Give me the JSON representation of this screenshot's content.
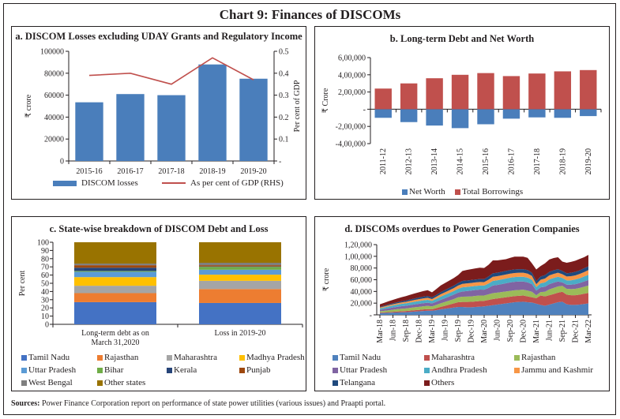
{
  "title": "Chart 9: Finances of DISCOMs",
  "sources": {
    "label": "Sources:",
    "text": "Power Finance Corporation report on performance of state power utilities (various issues) and Praapti portal."
  },
  "chart_data": [
    {
      "id": "a",
      "type": "bar",
      "title": "a. DISCOM Losses excluding UDAY Grants and Regulatory Income",
      "categories": [
        "2015-16",
        "2016-17",
        "2017-18",
        "2018-19",
        "2019-20"
      ],
      "series": [
        {
          "name": "DISCOM losses",
          "type": "bar",
          "axis": "left",
          "color": "#4a7ebb",
          "values": [
            53500,
            61000,
            60000,
            88000,
            75000
          ]
        },
        {
          "name": "As per cent of GDP (RHS)",
          "type": "line",
          "axis": "right",
          "color": "#c0504d",
          "values": [
            0.39,
            0.4,
            0.35,
            0.47,
            0.37
          ]
        }
      ],
      "ylabel": "₹ crore",
      "ylabel_right": "Per cent of GDP",
      "ylim": [
        0,
        100000
      ],
      "yticks": [
        "0",
        "20000",
        "40000",
        "60000",
        "80000",
        "100000"
      ],
      "ylim_right": [
        0,
        0.5
      ],
      "yticks_right": [
        "-",
        "0.1",
        "0.2",
        "0.3",
        "0.4",
        "0.5"
      ],
      "grid": false,
      "legend": "bottom"
    },
    {
      "id": "b",
      "type": "bar",
      "title": "b. Long-term Debt and Net Worth",
      "categories": [
        "2011-12",
        "2012-13",
        "2013-14",
        "2014-15",
        "2015-16",
        "2016-17",
        "2017-18",
        "2018-19",
        "2019-20"
      ],
      "series": [
        {
          "name": "Net Worth",
          "color": "#4a7ebb",
          "values": [
            -100000,
            -150000,
            -190000,
            -220000,
            -175000,
            -110000,
            -95000,
            -100000,
            -80000
          ]
        },
        {
          "name": "Total Borrowings",
          "color": "#c0504d",
          "values": [
            240000,
            300000,
            360000,
            400000,
            420000,
            385000,
            415000,
            440000,
            455000
          ]
        }
      ],
      "ylabel": "₹ Crore",
      "ylim": [
        -400000,
        600000
      ],
      "yticks": [
        "-4,00,000",
        "-2,00,000",
        "-",
        "2,00,000",
        "4,00,000",
        "6,00,000"
      ],
      "grid": false,
      "legend": "bottom"
    },
    {
      "id": "c",
      "type": "bar",
      "stacked": true,
      "title": "c. State-wise breakdown of DISCOM Debt and Loss",
      "categories": [
        "Long-term debt as on March 31,2020",
        "Loss in 2019-20"
      ],
      "series": [
        {
          "name": "Tamil Nadu",
          "color": "#4472c4",
          "values": [
            27,
            26
          ]
        },
        {
          "name": "Rajasthan",
          "color": "#ed7d31",
          "values": [
            11,
            17
          ]
        },
        {
          "name": "Maharashtra",
          "color": "#a5a5a5",
          "values": [
            9,
            10
          ]
        },
        {
          "name": "Madhya Pradesh",
          "color": "#ffc000",
          "values": [
            10.5,
            7.5
          ]
        },
        {
          "name": "Uttar Pradesh",
          "color": "#5b9bd5",
          "values": [
            6.5,
            6
          ]
        },
        {
          "name": "Bihar",
          "color": "#70ad47",
          "values": [
            1,
            3.5
          ]
        },
        {
          "name": "Kerala",
          "color": "#264478",
          "values": [
            4,
            0.5
          ]
        },
        {
          "name": "Punjab",
          "color": "#9e480e",
          "values": [
            3,
            1.5
          ]
        },
        {
          "name": "West Bengal",
          "color": "#7f7f7f",
          "values": [
            2,
            3
          ]
        },
        {
          "name": "Other states",
          "color": "#997300",
          "values": [
            26,
            25
          ]
        }
      ],
      "ylabel": "Per cent",
      "ylim": [
        0,
        100
      ],
      "yticks": [
        "0",
        "10",
        "20",
        "30",
        "40",
        "50",
        "60",
        "70",
        "80",
        "90",
        "100"
      ],
      "grid": false,
      "legend": "bottom"
    },
    {
      "id": "d",
      "type": "area",
      "stacked": true,
      "title": "d. DISCOMs overdues to Power Generation Companies",
      "x": [
        "Mar-18",
        "Apr-18",
        "May-18",
        "Jun-18",
        "Jul-18",
        "Aug-18",
        "Sep-18",
        "Oct-18",
        "Nov-18",
        "Dec-18",
        "Jan-19",
        "Feb-19",
        "Mar-19",
        "Apr-19",
        "May-19",
        "Jun-19",
        "Jul-19",
        "Aug-19",
        "Sep-19",
        "Oct-19",
        "Nov-19",
        "Dec-19",
        "Jan-20",
        "Feb-20",
        "Mar-20",
        "Apr-20",
        "May-20",
        "Jun-20",
        "Jul-20",
        "Aug-20",
        "Sep-20",
        "Oct-20",
        "Nov-20",
        "Dec-20",
        "Jan-21",
        "Feb-21",
        "Mar-21",
        "Apr-21",
        "May-21",
        "Jun-21",
        "Jul-21",
        "Aug-21",
        "Sep-21",
        "Oct-21",
        "Nov-21",
        "Dec-21",
        "Jan-22",
        "Feb-22",
        "Mar-22"
      ],
      "xticks": [
        "Mar-18",
        "Jun-18",
        "Sep-18",
        "Dec-18",
        "Mar-19",
        "Jun-19",
        "Sep-19",
        "Dec-19",
        "Mar-20",
        "Jun-20",
        "Sep-20",
        "Dec-20",
        "Mar-21",
        "Jun-21",
        "Sep-21",
        "Dec-21",
        "Mar-22"
      ],
      "series": [
        {
          "name": "Tamil Nadu",
          "color": "#4f81bd",
          "values": [
            3000,
            3200,
            3500,
            3800,
            4000,
            4300,
            4500,
            5000,
            5500,
            6000,
            6500,
            7000,
            7000,
            8000,
            9500,
            10500,
            11500,
            12500,
            13500,
            13500,
            13000,
            13000,
            13500,
            14000,
            14500,
            15500,
            16500,
            17500,
            18500,
            19500,
            20500,
            21500,
            22000,
            22500,
            21500,
            21000,
            19000,
            17000,
            15500,
            17500,
            19500,
            21500,
            22500,
            18000,
            17000,
            17000,
            17500,
            18500,
            19500
          ]
        },
        {
          "name": "Maharashtra",
          "color": "#c0504d",
          "values": [
            1000,
            1200,
            1300,
            1500,
            1700,
            1900,
            2000,
            2200,
            2400,
            2500,
            2700,
            2800,
            2500,
            3500,
            4200,
            5000,
            6000,
            7000,
            8000,
            8500,
            9000,
            9200,
            9500,
            9600,
            9500,
            10000,
            10500,
            10500,
            10500,
            10500,
            10500,
            10500,
            10500,
            10500,
            10000,
            9000,
            9500,
            16000,
            16000,
            16000,
            16000,
            16500,
            17000,
            16500,
            16500,
            16500,
            17000,
            17500,
            18000
          ]
        },
        {
          "name": "Rajasthan",
          "color": "#9bbb59",
          "values": [
            2000,
            2500,
            3000,
            3500,
            4000,
            4300,
            4500,
            4800,
            5000,
            5200,
            5400,
            5500,
            5000,
            5500,
            6000,
            6500,
            7000,
            7500,
            8500,
            9000,
            9200,
            9300,
            9400,
            9500,
            9000,
            9500,
            10000,
            10000,
            10000,
            10000,
            10000,
            10000,
            10000,
            10000,
            10000,
            9500,
            5000,
            6000,
            8000,
            10000,
            10500,
            10500,
            10000,
            10000,
            10500,
            11000,
            11500,
            12000,
            12500
          ]
        },
        {
          "name": "Uttar Pradesh",
          "color": "#8064a2",
          "values": [
            2500,
            3000,
            3500,
            3800,
            4000,
            4300,
            4500,
            4700,
            5000,
            5200,
            5300,
            5400,
            5000,
            5500,
            6000,
            6500,
            7000,
            7500,
            8000,
            9000,
            9500,
            10000,
            10000,
            10000,
            10000,
            11000,
            13000,
            13000,
            13500,
            14000,
            14500,
            14500,
            14500,
            14000,
            14000,
            13000,
            8000,
            8000,
            8500,
            9000,
            9000,
            8500,
            6000,
            7000,
            7500,
            8000,
            8500,
            9000,
            9500
          ]
        },
        {
          "name": "Andhra Pradesh",
          "color": "#4bacc6",
          "values": [
            2500,
            2800,
            3200,
            3500,
            3800,
            4000,
            4200,
            4400,
            4500,
            4700,
            4800,
            5000,
            4500,
            5000,
            5500,
            5800,
            6000,
            6200,
            6500,
            7000,
            7000,
            7000,
            7000,
            7000,
            7000,
            7500,
            8000,
            8000,
            8000,
            8000,
            8000,
            8000,
            8000,
            8000,
            8000,
            7500,
            6000,
            7000,
            7500,
            8000,
            8000,
            8000,
            7500,
            7500,
            7500,
            8000,
            8000,
            8500,
            9000
          ]
        },
        {
          "name": "Jammu and Kashmir",
          "color": "#f79646",
          "values": [
            1500,
            1700,
            1900,
            2000,
            2200,
            2400,
            2600,
            2800,
            3000,
            3200,
            3400,
            3500,
            3000,
            3500,
            4000,
            4300,
            4600,
            5000,
            5500,
            6000,
            6000,
            6000,
            6000,
            6000,
            6000,
            6500,
            7000,
            7000,
            7000,
            7000,
            7000,
            7000,
            7000,
            7000,
            7000,
            6500,
            5000,
            6000,
            6500,
            7000,
            7000,
            7000,
            6500,
            6500,
            7000,
            7000,
            7500,
            7500,
            8000
          ]
        },
        {
          "name": "Telangana",
          "color": "#1f497d",
          "values": [
            1000,
            1200,
            1400,
            1600,
            1800,
            2000,
            2200,
            2400,
            2600,
            2800,
            3000,
            3000,
            3000,
            3200,
            3500,
            3800,
            4000,
            4200,
            4500,
            5000,
            5000,
            5000,
            5000,
            5000,
            5000,
            5500,
            6000,
            6000,
            6000,
            6000,
            6000,
            6000,
            6000,
            6000,
            6000,
            5500,
            5000,
            5500,
            6000,
            6000,
            6000,
            6000,
            5500,
            5500,
            6000,
            6000,
            6000,
            6500,
            6500
          ]
        },
        {
          "name": "Others",
          "color": "#7b1c1c",
          "values": [
            4500,
            5000,
            5500,
            6000,
            6500,
            7000,
            7500,
            8000,
            8500,
            9000,
            9500,
            10000,
            8500,
            10000,
            11500,
            12000,
            12500,
            13000,
            13500,
            17000,
            18000,
            18500,
            19000,
            19500,
            19000,
            20000,
            22000,
            21000,
            20500,
            20000,
            21000,
            22000,
            21500,
            21500,
            21000,
            16000,
            20000,
            18000,
            20000,
            21000,
            21000,
            20500,
            16000,
            18000,
            18500,
            19000,
            19500,
            19000,
            19500
          ]
        }
      ],
      "ylabel": "₹ crore",
      "ylim": [
        0,
        120000
      ],
      "yticks": [
        "-",
        "20,000",
        "40,000",
        "60,000",
        "80,000",
        "1,00,000",
        "1,20,000"
      ],
      "grid": false,
      "legend": "bottom"
    }
  ]
}
